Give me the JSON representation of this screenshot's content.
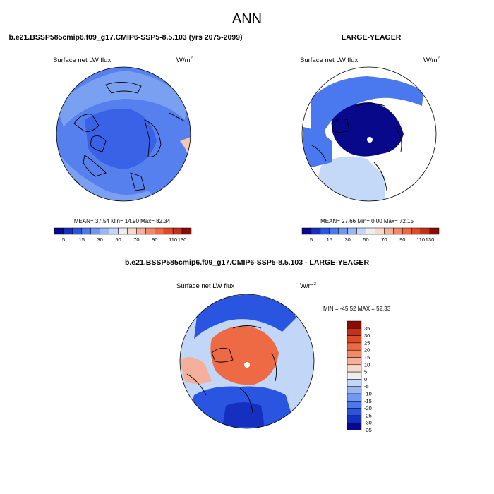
{
  "page_title": "ANN",
  "panels": [
    {
      "title": "b.e21.BSSP585cmip6.f09_g17.CMIP6-SSP5-8.5.103 (yrs 2075-2099)",
      "field_label": "Surface net LW flux",
      "units": "W/m",
      "units_sup": "2",
      "stats_text": "MEAN=  37.54  Min=  14.90  Max=  82.34"
    },
    {
      "title": "LARGE-YEAGER",
      "field_label": "Surface net LW flux",
      "units": "W/m",
      "units_sup": "2",
      "stats_text": "MEAN=  27.66  Min=   0.00  Max=  72.15"
    },
    {
      "title": "b.e21.BSSP585cmip6.f09_g17.CMIP6-SSP5-8.5.103 - LARGE-YEAGER",
      "field_label": "Surface net LW flux",
      "units": "W/m",
      "units_sup": "2",
      "stats_text": "MIN = -45.52 MAX =  52.33"
    }
  ],
  "colorbar_abs": {
    "tick_labels": [
      "5",
      "15",
      "30",
      "50",
      "70",
      "90",
      "110",
      "130"
    ],
    "colors": [
      "#08088a",
      "#1530c0",
      "#2a55e0",
      "#4a78ee",
      "#6e98f2",
      "#98b8f4",
      "#c2d6f8",
      "#eeeeee",
      "#f8d8c8",
      "#f4b09a",
      "#f08a68",
      "#ee6a44",
      "#e04a26",
      "#c4301a",
      "#8a0c06"
    ]
  },
  "colorbar_diff": {
    "tick_labels": [
      "35",
      "30",
      "25",
      "20",
      "15",
      "10",
      "5",
      "0",
      "-5",
      "-10",
      "-15",
      "-20",
      "-25",
      "-30",
      "-35"
    ],
    "colors": [
      "#8a0c06",
      "#c4301a",
      "#e04a26",
      "#ee6a44",
      "#f08a68",
      "#f4b09a",
      "#f8d8c8",
      "#eeeeee",
      "#c2d6f8",
      "#98b8f4",
      "#6e98f2",
      "#4a78ee",
      "#2a55e0",
      "#1530c0",
      "#08088a"
    ]
  },
  "map_colors": {
    "panel1_base": "#5580ee",
    "panel1_light": "#7aa0f2",
    "panel1_dark": "#3a62e6",
    "panel1_edge": "#f4c8b0",
    "panel2_base": "#c4d8f8",
    "panel2_ocean": "#4a78ee",
    "panel2_core": "#08088a",
    "diff_pos": "#ee6a44",
    "diff_pos_light": "#f4b09a",
    "diff_neg": "#2a55e0",
    "diff_neg_dark": "#1530c0",
    "diff_light": "#c2d6f8"
  },
  "chart_data": [
    {
      "type": "heatmap",
      "projection": "north-polar-stereographic",
      "title": "b.e21.BSSP585cmip6.f09_g17.CMIP6-SSP5-8.5.103 (yrs 2075-2099)",
      "variable": "Surface net LW flux",
      "units": "W/m2",
      "stats": {
        "mean": 37.54,
        "min": 14.9,
        "max": 82.34
      },
      "contour_levels": [
        5,
        10,
        15,
        20,
        25,
        30,
        40,
        50,
        60,
        70,
        80,
        90,
        100,
        110,
        120,
        130
      ]
    },
    {
      "type": "heatmap",
      "projection": "north-polar-stereographic",
      "title": "LARGE-YEAGER",
      "variable": "Surface net LW flux",
      "units": "W/m2",
      "stats": {
        "mean": 27.66,
        "min": 0.0,
        "max": 72.15
      },
      "contour_levels": [
        5,
        10,
        15,
        20,
        25,
        30,
        40,
        50,
        60,
        70,
        80,
        90,
        100,
        110,
        120,
        130
      ]
    },
    {
      "type": "heatmap",
      "projection": "north-polar-stereographic",
      "title": "b.e21.BSSP585cmip6.f09_g17.CMIP6-SSP5-8.5.103 - LARGE-YEAGER",
      "variable": "Surface net LW flux",
      "units": "W/m2",
      "stats": {
        "min": -45.52,
        "max": 52.33
      },
      "contour_levels": [
        -35,
        -30,
        -25,
        -20,
        -15,
        -10,
        -5,
        0,
        5,
        10,
        15,
        20,
        25,
        30,
        35
      ]
    }
  ]
}
